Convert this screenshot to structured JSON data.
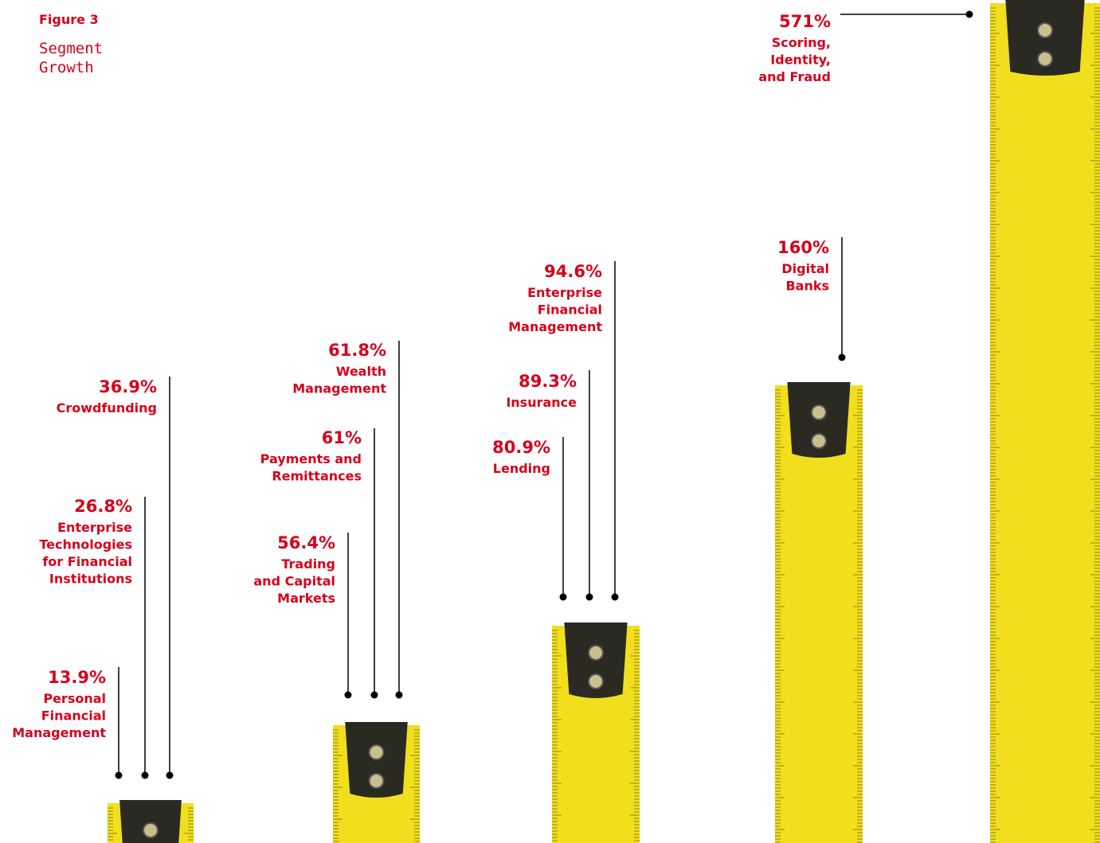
{
  "header": {
    "figure": "Figure 3",
    "title_lines": [
      "Segment",
      "Growth"
    ]
  },
  "segments": [
    {
      "value": "13.9%",
      "name_lines": [
        "Personal",
        "Financial",
        "Management"
      ]
    },
    {
      "value": "26.8%",
      "name_lines": [
        "Enterprise",
        "Technologies",
        "for Financial",
        "Institutions"
      ]
    },
    {
      "value": "36.9%",
      "name_lines": [
        "Crowdfunding"
      ]
    },
    {
      "value": "56.4%",
      "name_lines": [
        "Trading",
        "and Capital",
        "Markets"
      ]
    },
    {
      "value": "61%",
      "name_lines": [
        "Payments and",
        "Remittances"
      ]
    },
    {
      "value": "61.8%",
      "name_lines": [
        "Wealth",
        "Management"
      ]
    },
    {
      "value": "80.9%",
      "name_lines": [
        "Lending"
      ]
    },
    {
      "value": "89.3%",
      "name_lines": [
        "Insurance"
      ]
    },
    {
      "value": "94.6%",
      "name_lines": [
        "Enterprise",
        "Financial",
        "Management"
      ]
    },
    {
      "value": "160%",
      "name_lines": [
        "Digital",
        "Banks"
      ]
    },
    {
      "value": "571%",
      "name_lines": [
        "Scoring,",
        "Identity,",
        "and Fraud"
      ]
    }
  ]
}
